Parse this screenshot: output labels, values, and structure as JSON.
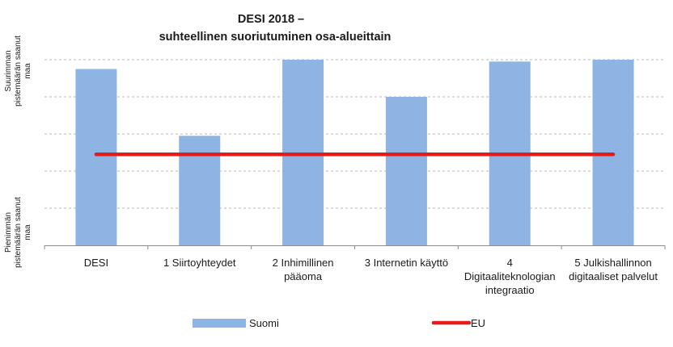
{
  "chart_data": {
    "type": "bar",
    "title_line1": "DESI 2018 –",
    "title_line2": "suhteellinen suoriutuminen osa-alueittain",
    "categories": [
      [
        "DESI"
      ],
      [
        "1 Siirtoyhteydet"
      ],
      [
        "2 Inhimillinen",
        "pääoma"
      ],
      [
        "3 Internetin käyttö"
      ],
      [
        "4",
        "Digitaaliteknologian",
        "integraatio"
      ],
      [
        "5 Julkishallinnon",
        "digitaaliset palvelut"
      ]
    ],
    "series": [
      {
        "name": "Suomi",
        "kind": "bar",
        "color": "#8eb4e3",
        "values": [
          0.95,
          0.59,
          1.0,
          0.8,
          0.99,
          1.0
        ]
      },
      {
        "name": "EU",
        "kind": "line",
        "color": "#e41a1c",
        "values": [
          0.49,
          0.49,
          0.49,
          0.49,
          0.49,
          0.49
        ]
      }
    ],
    "ylim": [
      0,
      1
    ],
    "y_top_label": [
      "Suurimman",
      "pistemäärän saanut",
      "maa"
    ],
    "y_bottom_label": [
      "Pienimmän",
      "pistemäärän saanut",
      "maa"
    ],
    "grid": "dashed horizontal",
    "legend_position": "bottom"
  }
}
